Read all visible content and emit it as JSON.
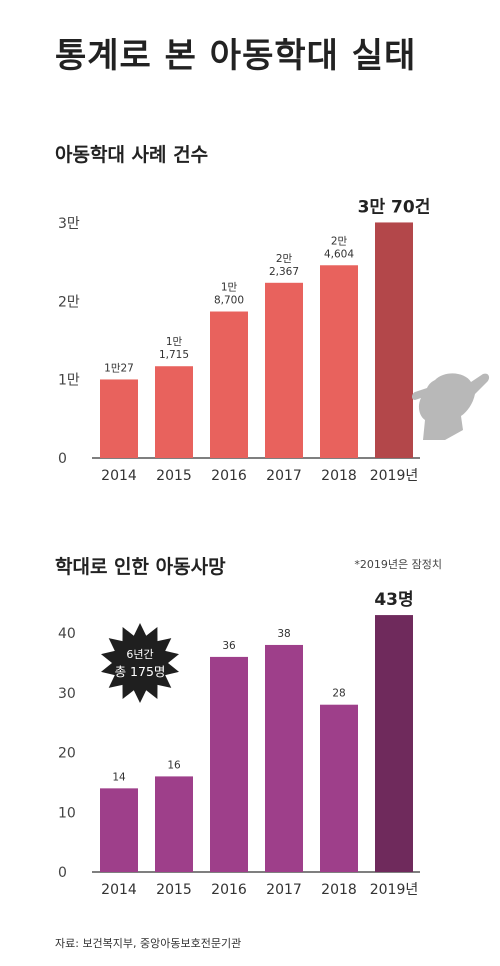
{
  "title": "통계로 본 아동학대 실태",
  "note": "*2019년은 잠정치",
  "source": "자료: 보건복지부, 중앙아동보호전문기관",
  "colors": {
    "chart1_bar": "#e8625d",
    "chart1_highlight": "#b3474a",
    "chart2_bar": "#9e3f8a",
    "chart2_highlight": "#6f2a5c",
    "badge": "#1f1f1f"
  },
  "chart_data": [
    {
      "type": "bar",
      "title": "아동학대 사례 건수",
      "categories": [
        "2014",
        "2015",
        "2016",
        "2017",
        "2018",
        "2019년"
      ],
      "values": [
        10027,
        11715,
        18700,
        22367,
        24604,
        30070
      ],
      "data_labels": [
        [
          "1만27"
        ],
        [
          "1만",
          "1,715"
        ],
        [
          "1만",
          "8,700"
        ],
        [
          "2만",
          "2,367"
        ],
        [
          "2만",
          "4,604"
        ],
        [
          "3만 70건"
        ]
      ],
      "yticks": [
        0,
        10000,
        20000,
        30000
      ],
      "ytick_labels": [
        "0",
        "1만",
        "2만",
        "3만"
      ],
      "ylim": [
        0,
        30000
      ],
      "highlight_index": 5
    },
    {
      "type": "bar",
      "title": "학대로 인한 아동사망",
      "categories": [
        "2014",
        "2015",
        "2016",
        "2017",
        "2018",
        "2019년"
      ],
      "values": [
        14,
        16,
        36,
        38,
        28,
        43
      ],
      "data_labels": [
        [
          "14"
        ],
        [
          "16"
        ],
        [
          "36"
        ],
        [
          "38"
        ],
        [
          "28"
        ],
        [
          "43명"
        ]
      ],
      "yticks": [
        0,
        10,
        20,
        30,
        40
      ],
      "ytick_labels": [
        "0",
        "10",
        "20",
        "30",
        "40"
      ],
      "ylim": [
        0,
        40
      ],
      "highlight_index": 5,
      "badge": {
        "line1": "6년간",
        "line2": "총 175명"
      }
    }
  ]
}
